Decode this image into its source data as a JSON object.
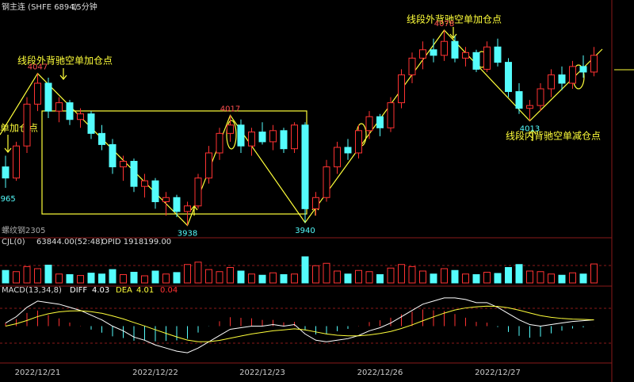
{
  "chart_data": {
    "type": "candlestick",
    "title": "钢主连 (SHFE 6894)",
    "period": "15分钟",
    "contract": "螺纹钢2305",
    "annotations": [
      "线段外背驰空单加仓点",
      "线段外背驰空单加仓点",
      "单加仓点",
      "线段内背驰空单减仓点"
    ],
    "up_color": "#ff3232",
    "down_color": "#54fcfc",
    "ylim": [
      3932,
      4094
    ],
    "categories": [
      null,
      null,
      null,
      "2022/12/21",
      null,
      null,
      null,
      null,
      null,
      null,
      null,
      null,
      null,
      null,
      "2022/12/22",
      null,
      null,
      null,
      null,
      null,
      null,
      null,
      null,
      null,
      "2022/12/23",
      null,
      null,
      null,
      null,
      null,
      null,
      null,
      null,
      null,
      null,
      "2022/12/26",
      null,
      null,
      null,
      null,
      null,
      null,
      null,
      null,
      null,
      null,
      "2022/12/27",
      null,
      null,
      null,
      null,
      null,
      null,
      null,
      null,
      null
    ],
    "candles": [
      [
        3980,
        3988,
        3965,
        3972
      ],
      [
        3972,
        3998,
        3970,
        3995
      ],
      [
        3995,
        4030,
        3990,
        4025
      ],
      [
        4025,
        4047,
        4020,
        4040
      ],
      [
        4040,
        4044,
        4015,
        4020
      ],
      [
        4020,
        4030,
        4012,
        4026
      ],
      [
        4026,
        4028,
        4010,
        4014
      ],
      [
        4014,
        4022,
        4008,
        4018
      ],
      [
        4018,
        4020,
        4000,
        4004
      ],
      [
        4004,
        4010,
        3992,
        3996
      ],
      [
        3996,
        4000,
        3975,
        3980
      ],
      [
        3980,
        3988,
        3970,
        3984
      ],
      [
        3984,
        3986,
        3962,
        3966
      ],
      [
        3966,
        3975,
        3958,
        3970
      ],
      [
        3970,
        3972,
        3950,
        3955
      ],
      [
        3955,
        3962,
        3945,
        3958
      ],
      [
        3958,
        3960,
        3944,
        3948
      ],
      [
        3948,
        3955,
        3938,
        3952
      ],
      [
        3952,
        3975,
        3950,
        3972
      ],
      [
        3972,
        3995,
        3968,
        3990
      ],
      [
        3990,
        4008,
        3985,
        4004
      ],
      [
        4004,
        4017,
        3998,
        4010
      ],
      [
        4010,
        4014,
        3990,
        3995
      ],
      [
        3995,
        4008,
        3988,
        4005
      ],
      [
        4005,
        4012,
        3996,
        3998
      ],
      [
        3998,
        4010,
        3992,
        4006
      ],
      [
        4006,
        4008,
        3990,
        3993
      ],
      [
        3993,
        4012,
        3990,
        4010
      ],
      [
        4010,
        4012,
        3940,
        3950
      ],
      [
        3950,
        3962,
        3945,
        3958
      ],
      [
        3958,
        3985,
        3955,
        3980
      ],
      [
        3980,
        3998,
        3975,
        3994
      ],
      [
        3994,
        4000,
        3985,
        3990
      ],
      [
        3990,
        4010,
        3986,
        4006
      ],
      [
        4006,
        4020,
        4000,
        4016
      ],
      [
        4016,
        4018,
        4002,
        4008
      ],
      [
        4008,
        4030,
        4005,
        4026
      ],
      [
        4026,
        4050,
        4022,
        4046
      ],
      [
        4046,
        4062,
        4040,
        4058
      ],
      [
        4058,
        4070,
        4050,
        4064
      ],
      [
        4064,
        4072,
        4055,
        4060
      ],
      [
        4060,
        4078,
        4056,
        4070
      ],
      [
        4070,
        4074,
        4055,
        4058
      ],
      [
        4058,
        4066,
        4052,
        4062
      ],
      [
        4062,
        4064,
        4048,
        4050
      ],
      [
        4050,
        4070,
        4048,
        4066
      ],
      [
        4066,
        4072,
        4052,
        4055
      ],
      [
        4055,
        4058,
        4030,
        4034
      ],
      [
        4034,
        4040,
        4018,
        4022
      ],
      [
        4022,
        4028,
        4013,
        4024
      ],
      [
        4024,
        4040,
        4020,
        4036
      ],
      [
        4036,
        4050,
        4030,
        4046
      ],
      [
        4046,
        4052,
        4035,
        4040
      ],
      [
        4040,
        4056,
        4036,
        4052
      ],
      [
        4052,
        4060,
        4044,
        4048
      ],
      [
        4048,
        4066,
        4045,
        4060
      ]
    ],
    "volume": {
      "header": "CJL(0)",
      "value_label": "63844.00(52:48)",
      "oi_label": "OPID 1918199.00",
      "ylim": [
        0,
        120000
      ],
      "values": [
        42000,
        38000,
        55000,
        48000,
        60000,
        30000,
        28000,
        25000,
        33000,
        30000,
        45000,
        28000,
        36000,
        24000,
        40000,
        30000,
        35000,
        62000,
        70000,
        45000,
        38000,
        52000,
        40000,
        30000,
        26000,
        34000,
        28000,
        30000,
        88000,
        58000,
        66000,
        40000,
        30000,
        42000,
        38000,
        28000,
        50000,
        62000,
        55000,
        40000,
        30000,
        48000,
        42000,
        30000,
        28000,
        36000,
        32000,
        52000,
        62000,
        40000,
        38000,
        30000,
        26000,
        34000,
        30000,
        63844
      ]
    },
    "macd": {
      "header": "MACD(13,34,8)",
      "ylim": [
        -22,
        22
      ],
      "series": [
        {
          "name": "DIFF",
          "color": "#ffffff",
          "values": [
            2,
            6,
            12,
            16,
            15,
            14,
            12,
            10,
            7,
            4,
            0,
            -3,
            -7,
            -9,
            -12,
            -14,
            -16,
            -17,
            -14,
            -10,
            -6,
            -2,
            -1,
            0,
            0,
            1,
            0,
            1,
            -5,
            -9,
            -10,
            -9,
            -8,
            -6,
            -3,
            -1,
            2,
            6,
            10,
            14,
            16,
            18,
            18,
            17,
            15,
            15,
            12,
            8,
            4,
            1,
            0,
            1,
            2,
            3,
            3.5,
            4.03
          ]
        },
        {
          "name": "DEA",
          "color": "#ffff3a",
          "values": [
            0,
            1.5,
            3.6,
            6.1,
            7.9,
            9.1,
            9.7,
            9.8,
            9.2,
            8.2,
            6.5,
            4.6,
            2.3,
            0.1,
            -2.3,
            -4.6,
            -6.9,
            -8.9,
            -9.9,
            -9.9,
            -9.1,
            -7.7,
            -6.3,
            -5,
            -4,
            -3,
            -2.4,
            -1.7,
            -2.4,
            -3.7,
            -5,
            -5.8,
            -6.2,
            -6.2,
            -5.6,
            -4.7,
            -3.4,
            -1.5,
            0.8,
            3.4,
            5.9,
            8.3,
            10.3,
            11.6,
            12.3,
            12.8,
            12.6,
            11.7,
            10.2,
            8.4,
            6.7,
            5.6,
            4.9,
            4.5,
            4.3,
            4.01
          ]
        }
      ],
      "histogram": [
        2,
        4.5,
        8.4,
        9.9,
        7.1,
        4.9,
        2.3,
        0.2,
        -2.2,
        -4.2,
        -6.5,
        -7.6,
        -9.3,
        -9.1,
        -9.7,
        -9.4,
        -9.1,
        -8.1,
        -4.1,
        -0.1,
        3.1,
        5.7,
        5.3,
        5,
        4,
        4,
        2.4,
        2.7,
        -2.6,
        -5.3,
        -5,
        -3.2,
        -1.8,
        0.2,
        2.6,
        3.7,
        5.4,
        7.5,
        9.2,
        10.6,
        10.1,
        9.7,
        7.7,
        5.4,
        2.7,
        2.2,
        -0.6,
        -3.7,
        -6.2,
        -7.4,
        -6.7,
        -4.6,
        -2.9,
        -1.5,
        -0.8,
        0.04
      ]
    }
  }
}
